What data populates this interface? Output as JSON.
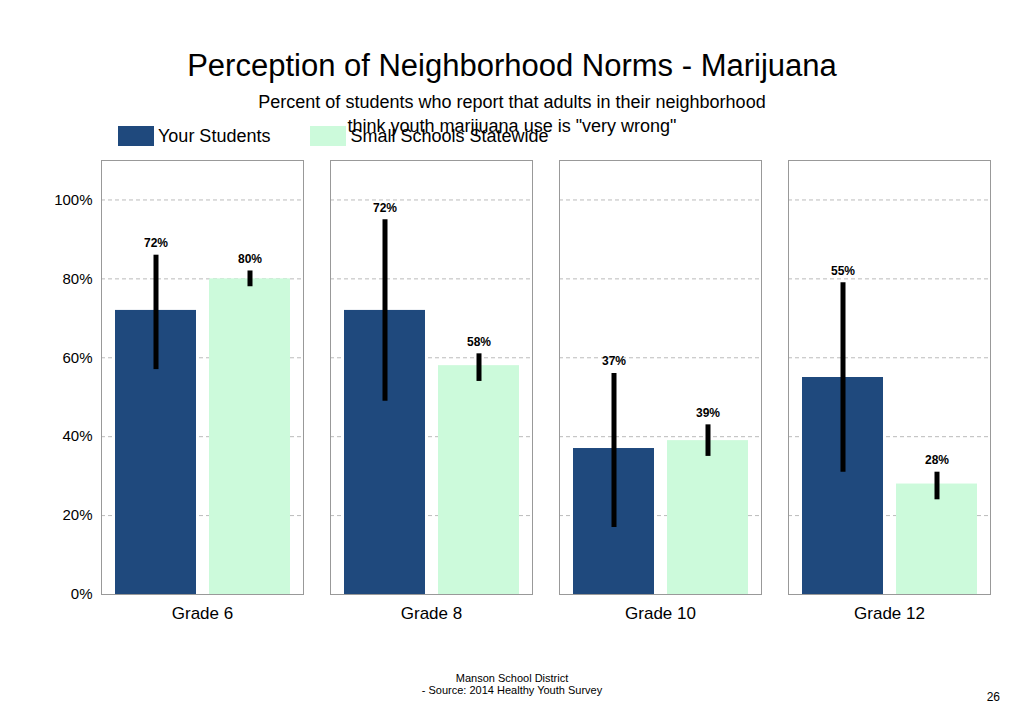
{
  "chart_data": {
    "type": "bar",
    "title": "Perception of Neighborhood Norms - Marijuana",
    "subtitle": [
      "Percent of students who report that adults in their neighborhood",
      "think youth marijuana use is \"very wrong\""
    ],
    "categories": [
      "Grade 6",
      "Grade 8",
      "Grade 10",
      "Grade 12"
    ],
    "series": [
      {
        "name": "Your Students",
        "color": "#1f497d",
        "values": [
          72,
          72,
          37,
          55
        ],
        "value_labels": [
          "72%",
          "72%",
          "37%",
          "55%"
        ],
        "error_low": [
          57,
          49,
          17,
          31
        ],
        "error_high": [
          86,
          95,
          56,
          79
        ]
      },
      {
        "name": "Small Schools Statewide",
        "color": "#ccfadb",
        "values": [
          80,
          58,
          39,
          28
        ],
        "value_labels": [
          "80%",
          "58%",
          "39%",
          "28%"
        ],
        "error_low": [
          78,
          54,
          35,
          24
        ],
        "error_high": [
          82,
          61,
          43,
          31
        ]
      }
    ],
    "ylim": [
      0,
      110
    ],
    "yticks": [
      {
        "value": 0,
        "label": "0%"
      },
      {
        "value": 20,
        "label": "20%"
      },
      {
        "value": 40,
        "label": "40%"
      },
      {
        "value": 60,
        "label": "60%"
      },
      {
        "value": 80,
        "label": "80%"
      },
      {
        "value": 100,
        "label": "100%"
      }
    ],
    "grid": true,
    "legend": "top",
    "data_labels": true,
    "footer": [
      "Manson School District",
      "- Source: 2014 Healthy Youth Survey"
    ],
    "page_number": "26"
  }
}
